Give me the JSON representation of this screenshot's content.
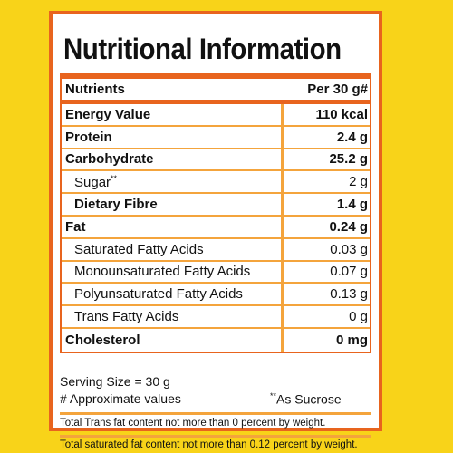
{
  "panel": {
    "title": "Nutritional Information"
  },
  "table": {
    "header": {
      "name": "Nutrients",
      "value": "Per 30 g#"
    },
    "rows": [
      {
        "name": "Energy Value",
        "value": "110 kcal",
        "style": "bold"
      },
      {
        "name": "Protein",
        "value": "2.4 g",
        "style": "bold"
      },
      {
        "name": "Carbohydrate",
        "value": "25.2 g",
        "style": "bold"
      },
      {
        "name": "Sugar",
        "marker": "**",
        "value": "2 g",
        "style": "sub"
      },
      {
        "name": "Dietary Fibre",
        "value": "1.4 g",
        "style": "bold-sub"
      },
      {
        "name": "Fat",
        "value": "0.24 g",
        "style": "bold"
      },
      {
        "name": "Saturated Fatty Acids",
        "value": "0.03 g",
        "style": "sub"
      },
      {
        "name": "Monounsaturated Fatty Acids",
        "value": "0.07 g",
        "style": "sub"
      },
      {
        "name": "Polyunsaturated Fatty Acids",
        "value": "0.13 g",
        "style": "sub"
      },
      {
        "name": "Trans Fatty Acids",
        "value": "0 g",
        "style": "sub"
      },
      {
        "name": "Cholesterol",
        "value": "0 mg",
        "style": "bold"
      }
    ]
  },
  "footer": {
    "serving_size": "Serving Size = 30 g",
    "approx_note": "# Approximate values",
    "sucrose_marker": "**",
    "sucrose_note": "As Sucrose",
    "trans_fat_note": "Total Trans fat content not more than 0 percent by weight.",
    "sat_fat_note": "Total saturated fat content not more than 0.12 percent by weight."
  },
  "colors": {
    "background": "#f8d319",
    "border": "#e8641e",
    "row_line": "#f4a43c",
    "text": "#111111"
  }
}
